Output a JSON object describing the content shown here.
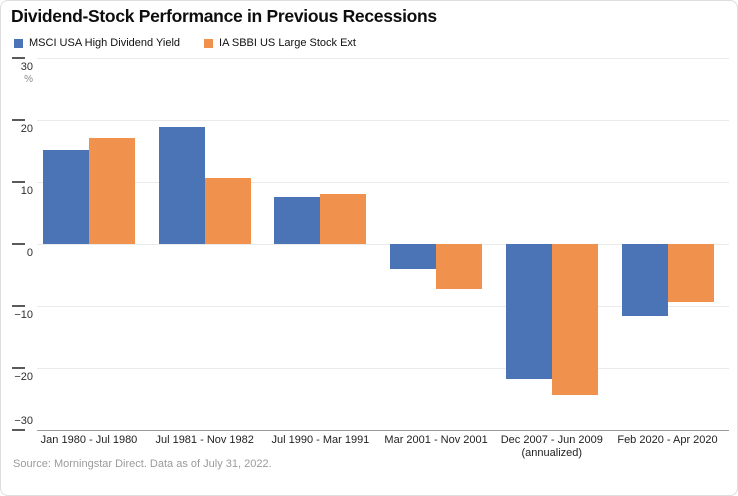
{
  "header": {
    "title": "Dividend-Stock Performance in Previous Recessions"
  },
  "footer": {
    "source": "Source: Morningstar Direct. Data as of July 31, 2022."
  },
  "colors": {
    "series1_blue": "#4a74b5",
    "series2_orange": "#f0924d",
    "gridline": "#eaeaea",
    "bottom_axis": "#9a9a9a",
    "tick": "#5a5a5a"
  },
  "chart_data": {
    "type": "bar",
    "title": "Dividend-Stock Performance in Previous Recessions",
    "unit": "%",
    "categories": [
      "Jan 1980 - Jul 1980",
      "Jul 1981 - Nov 1982",
      "Jul 1990 - Mar 1991",
      "Mar 2001 - Nov 2001",
      "Dec 2007 - Jun 2009",
      "Feb 2020 - Apr 2020"
    ],
    "category_notes": [
      "",
      "",
      "",
      "",
      "(annualized)",
      ""
    ],
    "series": [
      {
        "name": "MSCI USA High Dividend Yield",
        "color": "#4a74b5",
        "values": [
          15.2,
          18.8,
          7.6,
          -4.0,
          -21.8,
          -11.6
        ]
      },
      {
        "name": "IA SBBI US Large Stock Ext",
        "color": "#f0924d",
        "values": [
          17.1,
          10.6,
          8.1,
          -7.3,
          -24.4,
          -9.3
        ]
      }
    ],
    "ylim": [
      -30,
      30
    ],
    "yticks": [
      30,
      20,
      10,
      0,
      -10,
      -20,
      -30
    ],
    "ytick_labels": [
      "30",
      "20",
      "10",
      "0",
      "−10",
      "−20",
      "−30"
    ],
    "grid": true,
    "legend_position": "top-left"
  }
}
